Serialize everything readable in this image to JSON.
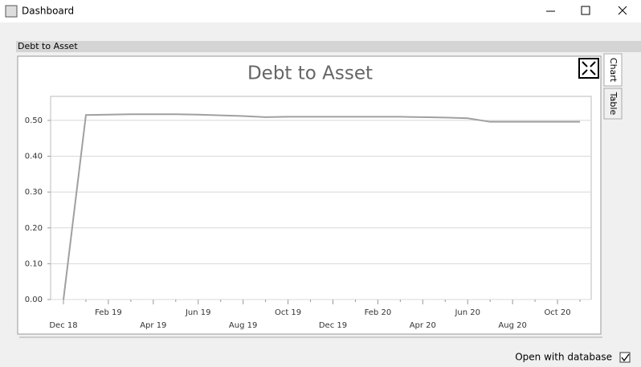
{
  "window": {
    "title": "Dashboard"
  },
  "panel": {
    "title": "Debt to Asset"
  },
  "tabs": [
    "Chart",
    "Table"
  ],
  "footer": {
    "checkbox_label": "Open with database",
    "checked": true
  },
  "chart_data": {
    "type": "line",
    "title": "Debt to Asset",
    "categories": [
      "Dec 18",
      null,
      "Feb 19",
      null,
      "Apr 19",
      null,
      "Jun 19",
      null,
      "Aug 19",
      null,
      "Oct 19",
      null,
      "Dec 19",
      null,
      "Feb 20",
      null,
      "Apr 20",
      null,
      "Jun 20",
      null,
      "Aug 20",
      null,
      "Oct 20",
      null
    ],
    "series": [
      {
        "color": "#a0a0a0",
        "values": [
          0,
          0.515,
          0.516,
          0.517,
          0.517,
          0.517,
          0.516,
          0.514,
          0.512,
          0.509,
          0.51,
          0.51,
          0.51,
          0.51,
          0.51,
          0.51,
          0.509,
          0.508,
          0.506,
          0.496,
          0.496,
          0.496,
          0.496,
          0.496
        ]
      }
    ],
    "ylim": [
      0,
      0.567
    ],
    "yticks": [
      {
        "value": 0,
        "label": "0.00"
      },
      {
        "value": 0.1,
        "label": "0.10"
      },
      {
        "value": 0.2,
        "label": "0.20"
      },
      {
        "value": 0.3,
        "label": "0.30"
      },
      {
        "value": 0.4,
        "label": "0.40"
      },
      {
        "value": 0.5,
        "label": "0.50"
      }
    ],
    "grid": true
  }
}
